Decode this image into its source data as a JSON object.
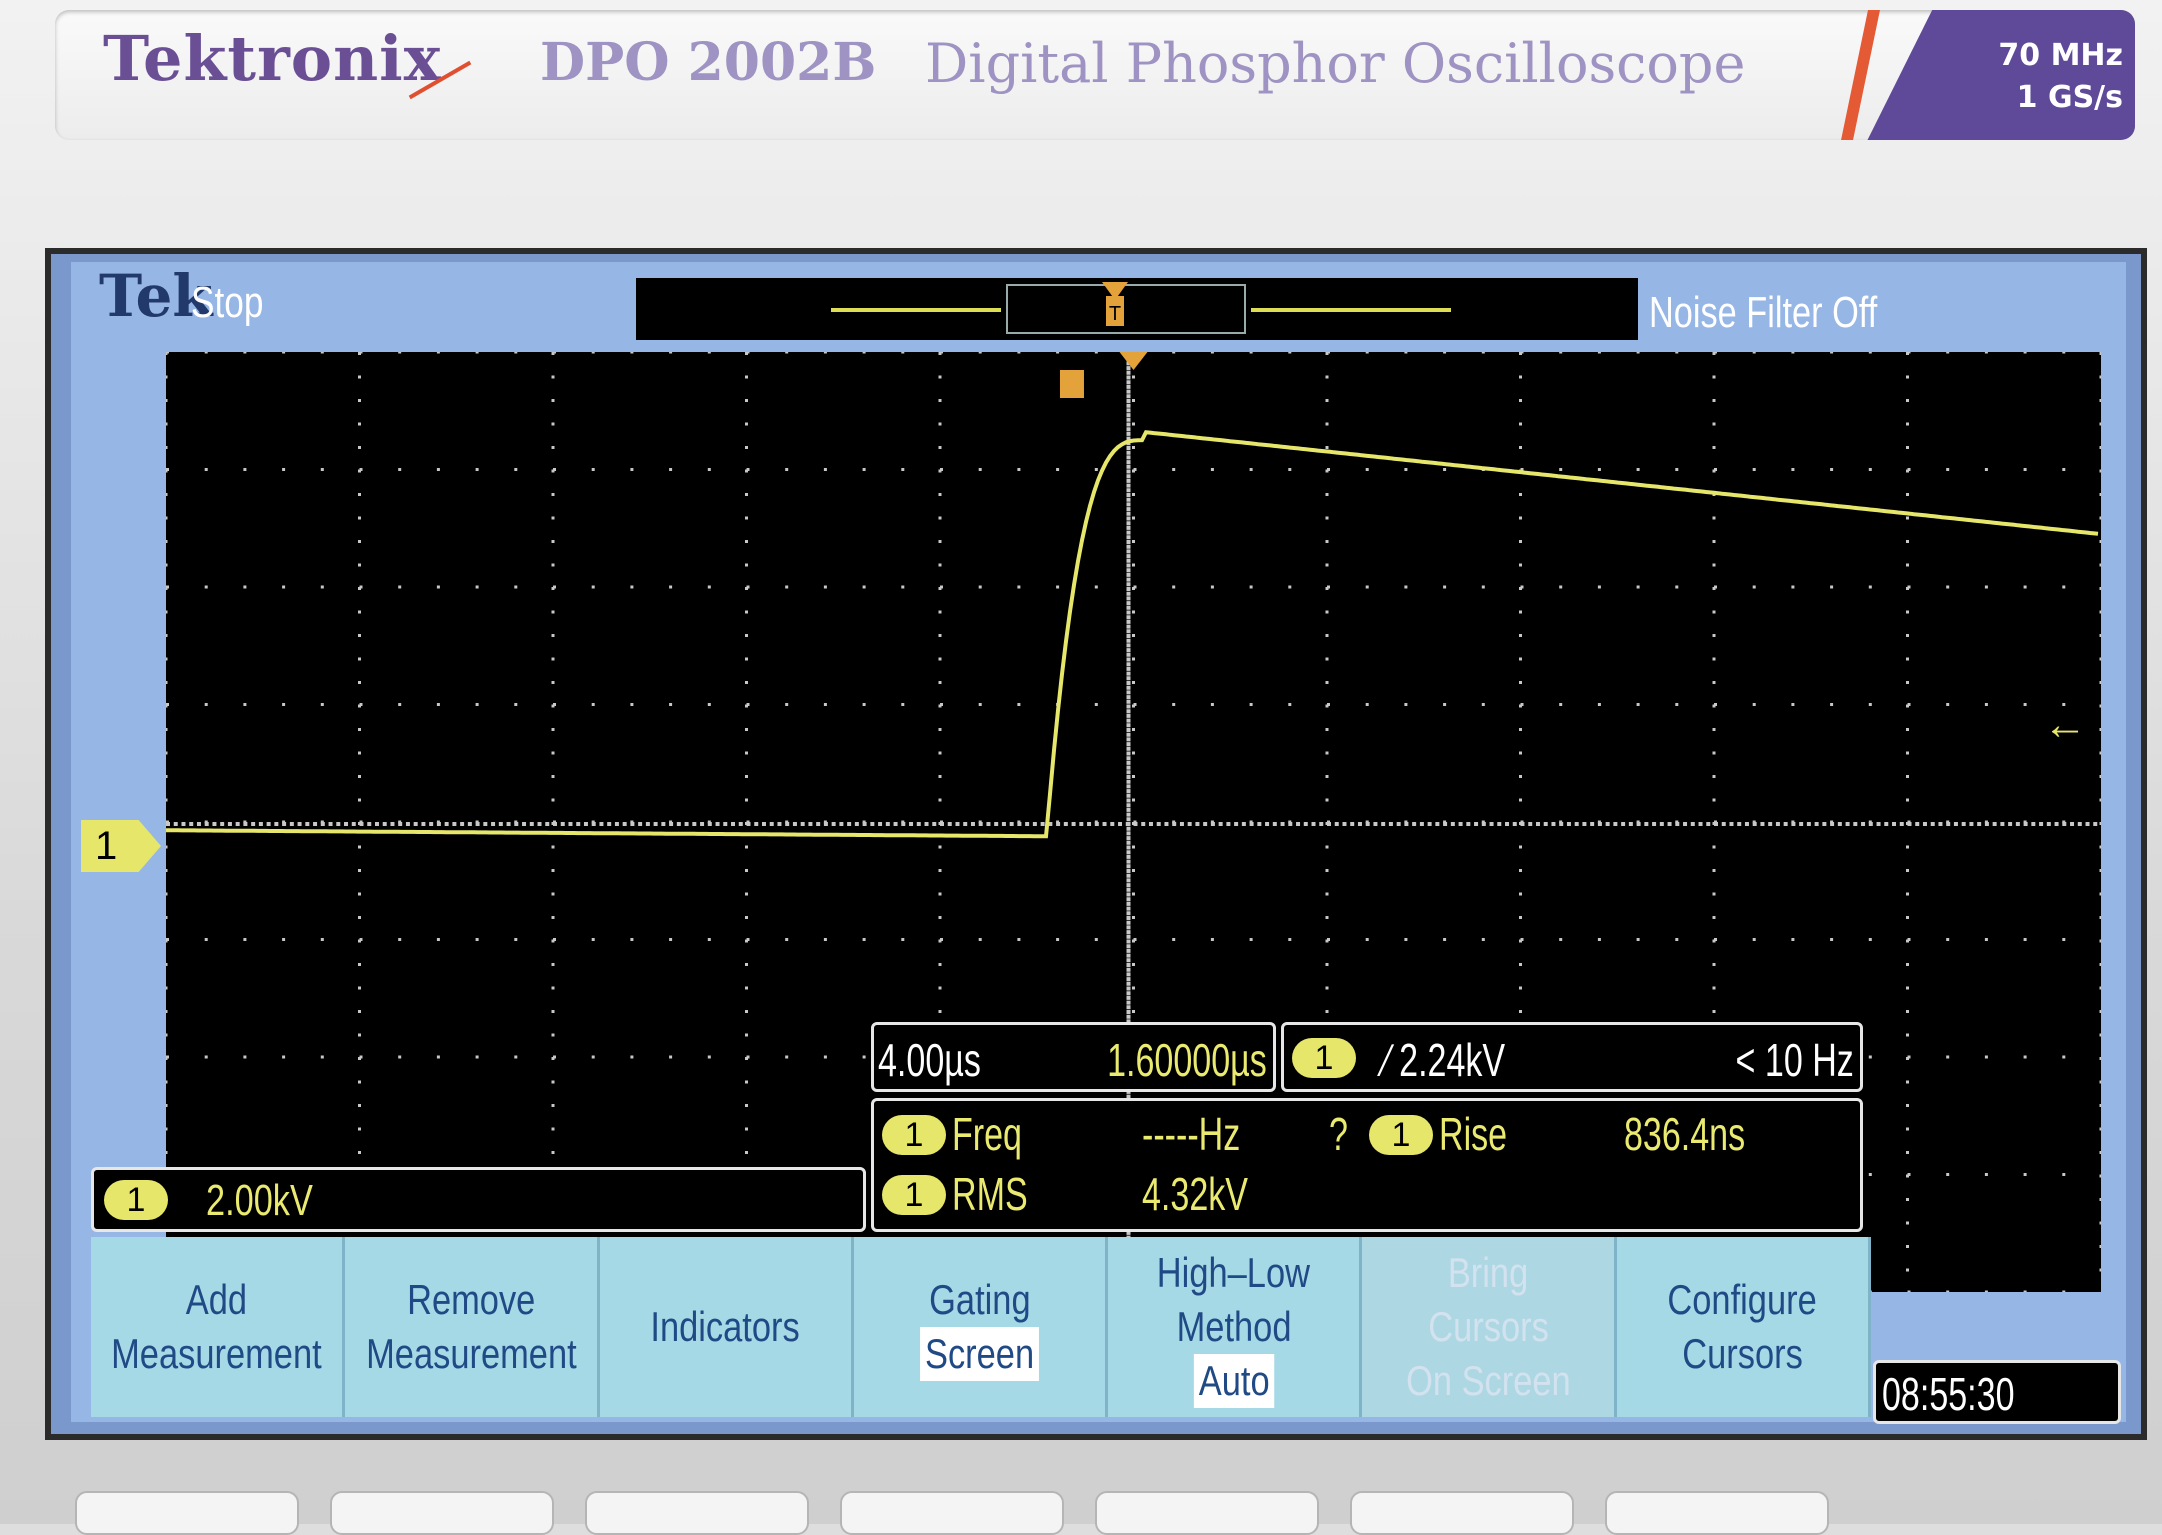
{
  "device": {
    "brand": "Tektronix",
    "model": "DPO 2002B",
    "description": "Digital Phosphor Oscilloscope",
    "bandwidth": "70 MHz",
    "sample_rate": "1 GS/s"
  },
  "screen": {
    "logo": "Tek",
    "acq_status": "Stop",
    "noise_filter": "Noise Filter Off",
    "channel_marker": "1",
    "channel_scale": {
      "channel": "1",
      "value": "2.00kV"
    },
    "timebase": {
      "per_div": "4.00µs",
      "position": "1.60000µs"
    },
    "trigger": {
      "channel": "1",
      "level": "∕ 2.24kV",
      "frequency": "< 10 Hz"
    },
    "measurements": [
      {
        "channel": "1",
        "label": "Freq",
        "value": "-----Hz",
        "flag": "?"
      },
      {
        "channel": "1",
        "label": "Rise",
        "value": "836.4ns"
      },
      {
        "channel": "1",
        "label": "RMS",
        "value": "4.32kV"
      }
    ],
    "softkeys": [
      {
        "lines": [
          "Add",
          "Measurement"
        ],
        "enabled": true
      },
      {
        "lines": [
          "Remove",
          "Measurement"
        ],
        "enabled": true
      },
      {
        "lines": [
          "Indicators"
        ],
        "enabled": true
      },
      {
        "lines": [
          "Gating"
        ],
        "sub": "Screen",
        "enabled": true
      },
      {
        "lines": [
          "High–Low",
          "Method"
        ],
        "sub": "Auto",
        "enabled": true
      },
      {
        "lines": [
          "Bring",
          "Cursors",
          "On Screen"
        ],
        "enabled": false
      },
      {
        "lines": [
          "Configure",
          "Cursors"
        ],
        "enabled": true
      }
    ],
    "clock": "08:55:30",
    "colors": {
      "trace": "#e6e66a",
      "background": "#000000",
      "frame": "#96b6e6"
    }
  }
}
